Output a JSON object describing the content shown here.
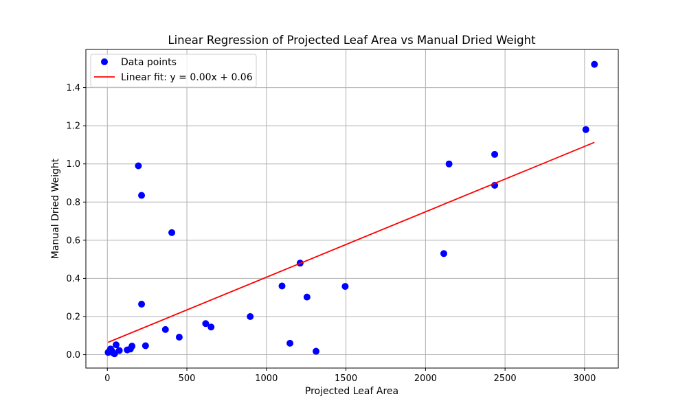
{
  "chart_data": {
    "type": "scatter",
    "title": "Linear Regression of Projected Leaf Area vs Manual Dried Weight",
    "xlabel": "Projected Leaf Area",
    "ylabel": "Manual Dried Weight",
    "xlim": [
      -135,
      3212
    ],
    "ylim": [
      -0.07,
      1.6
    ],
    "grid": true,
    "legend_position": "top-left",
    "x_ticks": [
      0,
      500,
      1000,
      1500,
      2000,
      2500,
      3000
    ],
    "y_ticks": [
      0.0,
      0.2,
      0.4,
      0.6,
      0.8,
      1.0,
      1.2,
      1.4
    ],
    "x_tick_labels": [
      "0",
      "500",
      "1000",
      "1500",
      "2000",
      "2500",
      "3000"
    ],
    "y_tick_labels": [
      "0.0",
      "0.2",
      "0.4",
      "0.6",
      "0.8",
      "1.0",
      "1.2",
      "1.4"
    ],
    "series": [
      {
        "name": "Data points",
        "kind": "scatter",
        "color": "#0000ff",
        "points": [
          [
            5,
            0.012
          ],
          [
            15,
            0.02
          ],
          [
            20,
            0.03
          ],
          [
            28,
            0.02
          ],
          [
            35,
            0.01
          ],
          [
            45,
            0.005
          ],
          [
            55,
            0.052
          ],
          [
            75,
            0.022
          ],
          [
            125,
            0.025
          ],
          [
            145,
            0.03
          ],
          [
            155,
            0.045
          ],
          [
            195,
            0.99
          ],
          [
            215,
            0.835
          ],
          [
            215,
            0.265
          ],
          [
            240,
            0.047
          ],
          [
            365,
            0.132
          ],
          [
            405,
            0.64
          ],
          [
            452,
            0.092
          ],
          [
            618,
            0.163
          ],
          [
            652,
            0.145
          ],
          [
            898,
            0.2
          ],
          [
            1098,
            0.36
          ],
          [
            1148,
            0.06
          ],
          [
            1212,
            0.48
          ],
          [
            1255,
            0.302
          ],
          [
            1312,
            0.018
          ],
          [
            1495,
            0.358
          ],
          [
            2115,
            0.53
          ],
          [
            2148,
            1.0
          ],
          [
            2435,
            1.05
          ],
          [
            2435,
            0.888
          ],
          [
            3008,
            1.18
          ],
          [
            3062,
            1.522
          ]
        ]
      },
      {
        "name": "Linear fit: y = 0.00x + 0.06",
        "kind": "line",
        "color": "#ff0000",
        "points": [
          [
            5,
            0.065
          ],
          [
            3062,
            1.113
          ]
        ]
      }
    ]
  }
}
